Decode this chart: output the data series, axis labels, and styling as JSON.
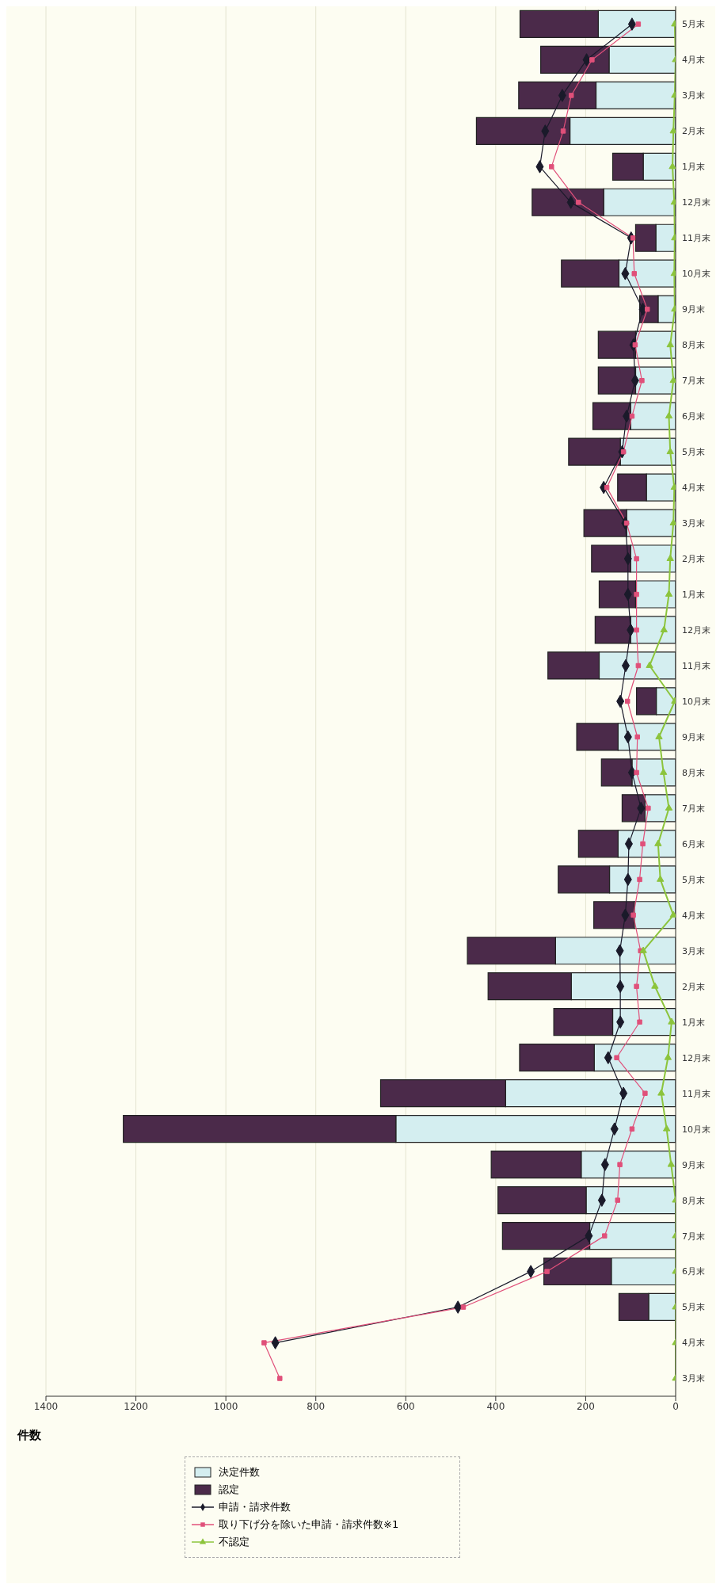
{
  "chart_data": {
    "type": "bar",
    "stacked": true,
    "orientation": "horizontal",
    "xlabel": "件数",
    "categories": [
      "5月末",
      "4月末",
      "3月末",
      "2月末",
      "1月末",
      "12月末",
      "11月末",
      "10月末",
      "9月末",
      "8月末",
      "7月末",
      "6月末",
      "5月末",
      "4月末",
      "3月末",
      "2月末",
      "1月末",
      "12月末",
      "11月末",
      "10月末",
      "9月末",
      "8月末",
      "7月末",
      "6月末",
      "5月末",
      "4月末",
      "3月末",
      "2月末",
      "1月末",
      "12月末",
      "11月末",
      "10月末",
      "9月末",
      "8月末",
      "7月末",
      "6月末",
      "5月末",
      "4月末",
      "3月末"
    ],
    "series": [
      {
        "name": "決定件数",
        "color": "#d4eef0",
        "values": [
          172,
          148,
          177,
          235,
          72,
          160,
          44,
          126,
          39,
          89,
          89,
          100,
          123,
          65,
          109,
          100,
          89,
          100,
          170,
          43,
          128,
          97,
          68,
          128,
          147,
          92,
          267,
          232,
          140,
          181,
          378,
          622,
          210,
          199,
          191,
          143,
          60,
          null,
          null
        ]
      },
      {
        "name": "認定",
        "color": "#4b2a4a",
        "values": [
          174,
          152,
          172,
          208,
          68,
          159,
          45,
          128,
          41,
          83,
          83,
          84,
          115,
          64,
          95,
          87,
          81,
          79,
          114,
          44,
          92,
          68,
          51,
          88,
          114,
          90,
          196,
          185,
          131,
          166,
          278,
          606,
          200,
          196,
          194,
          150,
          66,
          null,
          null
        ]
      },
      {
        "name": "申請・請求件数",
        "type": "line",
        "color": "#1a1a2a",
        "marker": "diamond",
        "values": [
          97,
          198,
          252,
          290,
          302,
          233,
          99,
          112,
          73,
          94,
          90,
          109,
          119,
          160,
          112,
          106,
          106,
          100,
          111,
          123,
          106,
          97,
          77,
          104,
          106,
          112,
          124,
          123,
          123,
          150,
          116,
          136,
          157,
          164,
          193,
          322,
          484,
          890,
          null
        ]
      },
      {
        "name": "取り下げ分を除いた申請・請求件数※1",
        "type": "line",
        "color": "#e0507a",
        "marker": "square",
        "values": [
          83,
          186,
          232,
          250,
          276,
          216,
          95,
          92,
          63,
          90,
          75,
          97,
          116,
          153,
          109,
          87,
          87,
          87,
          83,
          107,
          85,
          87,
          61,
          73,
          80,
          94,
          78,
          87,
          80,
          131,
          68,
          97,
          124,
          129,
          158,
          286,
          472,
          915,
          880
        ]
      },
      {
        "name": "不認定",
        "type": "line",
        "color": "#8cc43c",
        "marker": "triangle",
        "values": [
          2,
          0,
          2,
          5,
          7,
          3,
          2,
          3,
          2,
          12,
          5,
          15,
          12,
          3,
          5,
          12,
          15,
          26,
          58,
          2,
          37,
          27,
          15,
          39,
          34,
          5,
          72,
          46,
          9,
          17,
          32,
          20,
          10,
          0,
          0,
          0,
          0,
          0,
          0
        ]
      }
    ],
    "xlim": [
      1400,
      0
    ],
    "xticks": [
      0,
      200,
      400,
      600,
      800,
      1000,
      1200,
      1400
    ],
    "grid": "x",
    "legend": "bottom left",
    "line_style": "solid"
  }
}
